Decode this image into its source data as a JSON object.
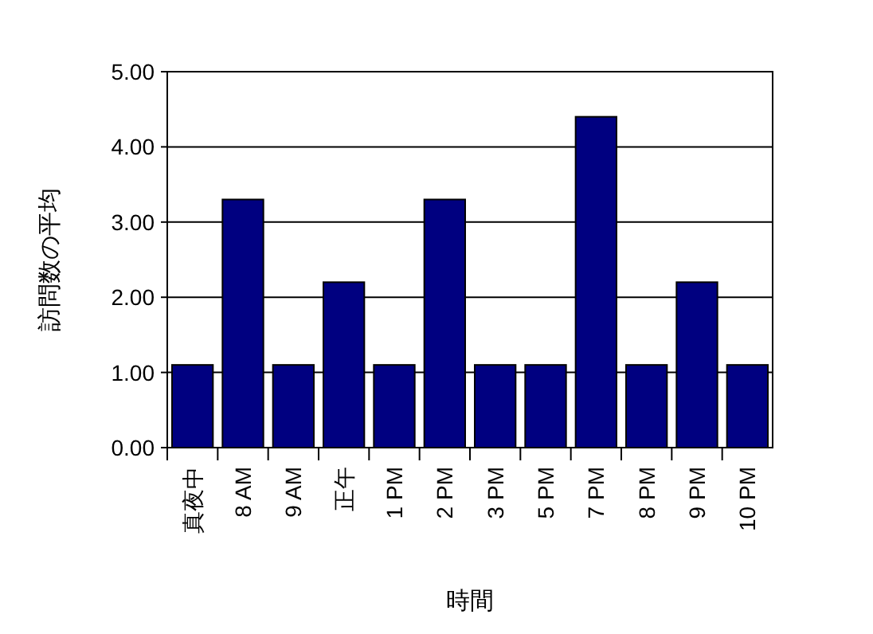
{
  "chart_data": {
    "type": "bar",
    "xlabel": "時間",
    "ylabel": "訪問数の平均",
    "categories": [
      "真夜中",
      "8 AM",
      "9 AM",
      "正午",
      "1 PM",
      "2 PM",
      "3 PM",
      "5 PM",
      "7 PM",
      "8 PM",
      "9 PM",
      "10 PM"
    ],
    "values": [
      1.1,
      3.3,
      1.1,
      2.2,
      1.1,
      3.3,
      1.1,
      1.1,
      4.4,
      1.1,
      2.2,
      1.1
    ],
    "color": "#000080",
    "ylim": [
      0,
      5
    ],
    "yticks": [
      {
        "value": 0,
        "label": "0.00"
      },
      {
        "value": 1,
        "label": "1.00"
      },
      {
        "value": 2,
        "label": "2.00"
      },
      {
        "value": 3,
        "label": "3.00"
      },
      {
        "value": 4,
        "label": "4.00"
      },
      {
        "value": 5,
        "label": "5.00"
      }
    ],
    "grid": "y"
  }
}
